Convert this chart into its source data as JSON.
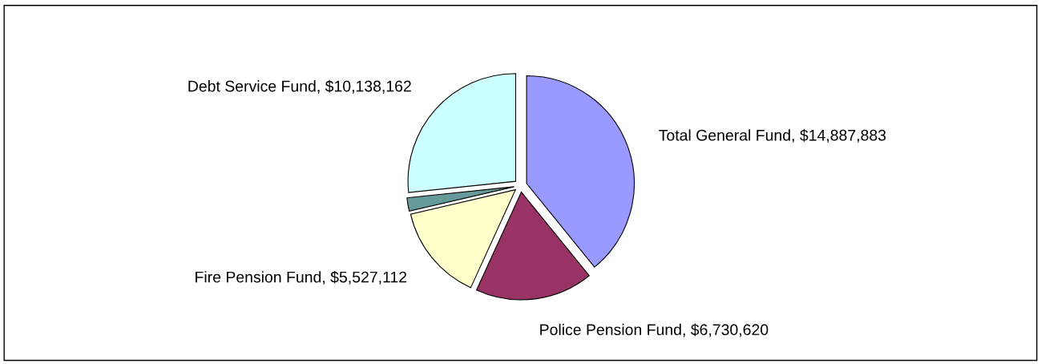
{
  "chart_data": {
    "type": "pie",
    "categories": [
      "Total General Fund",
      "Police Pension Fund",
      "Fire Pension Fund",
      null,
      "Debt Service Fund"
    ],
    "values": [
      14887883,
      6730620,
      5527112,
      760000,
      10138162
    ],
    "value_labels": [
      "$14,887,883",
      "$6,730,620",
      "$5,527,112",
      null,
      "$10,138,162"
    ],
    "colors": [
      "#9999ff",
      "#993366",
      "#ffffcc",
      "#669999",
      "#ccffff"
    ],
    "legend": false
  }
}
